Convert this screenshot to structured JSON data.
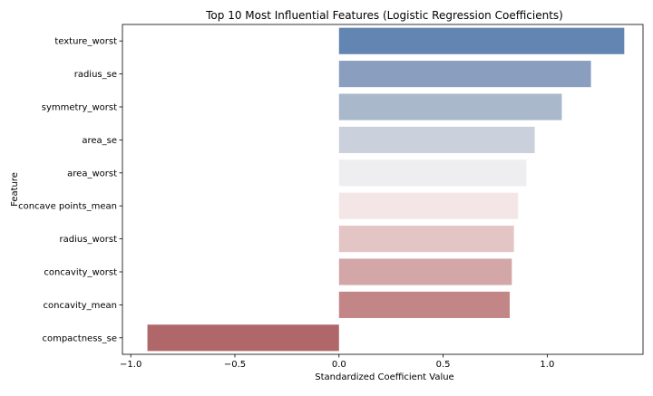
{
  "chart_data": {
    "type": "bar",
    "orientation": "horizontal",
    "title": "Top 10 Most Influential Features (Logistic Regression Coefficients)",
    "xlabel": "Standardized Coefficient Value",
    "ylabel": "Feature",
    "xlim": [
      -1.04,
      1.46
    ],
    "xticks": [
      -1.0,
      -0.5,
      0.0,
      0.5,
      1.0
    ],
    "xtick_labels": [
      "−1.0",
      "−0.5",
      "0.0",
      "0.5",
      "1.0"
    ],
    "grid": false,
    "categories": [
      "texture_worst",
      "radius_se",
      "symmetry_worst",
      "area_se",
      "area_worst",
      "concave points_mean",
      "radius_worst",
      "concavity_worst",
      "concavity_mean",
      "compactness_se"
    ],
    "values": [
      1.37,
      1.21,
      1.07,
      0.94,
      0.9,
      0.86,
      0.84,
      0.83,
      0.82,
      -0.92
    ],
    "colors": [
      "#6285b2",
      "#8a9fc0",
      "#aab8cb",
      "#cbd1dc",
      "#eeeef0",
      "#f4e6e6",
      "#e4c5c6",
      "#d3a6a7",
      "#c38687",
      "#b0676a"
    ]
  }
}
